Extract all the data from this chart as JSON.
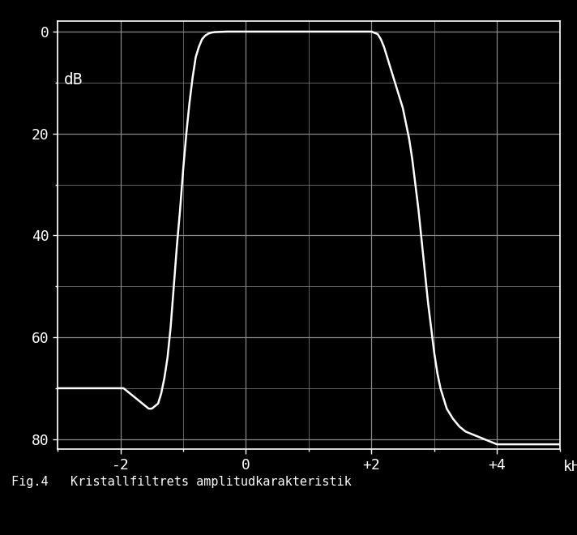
{
  "caption": "Fig.4   Kristallfiltrets amplitudkarakteristik",
  "xlabel": "kHz",
  "ylabel": "dB",
  "xlim": [
    -3.0,
    5.0
  ],
  "ylim": [
    82,
    -2
  ],
  "xticks": [
    -2,
    0,
    2,
    4
  ],
  "xticklabels": [
    "-2",
    "0",
    "+2",
    "+4"
  ],
  "yticks": [
    0,
    20,
    40,
    60,
    80
  ],
  "yticklabels": [
    "0",
    "20",
    "40",
    "60",
    "80"
  ],
  "background_color": "#000000",
  "grid_color": "#888888",
  "line_color": "#ffffff",
  "text_color": "#ffffff",
  "curve_x": [
    -3.0,
    -2.9,
    -2.7,
    -2.5,
    -2.3,
    -2.1,
    -2.0,
    -1.95,
    -1.9,
    -1.85,
    -1.8,
    -1.75,
    -1.7,
    -1.65,
    -1.6,
    -1.55,
    -1.5,
    -1.45,
    -1.4,
    -1.35,
    -1.3,
    -1.25,
    -1.2,
    -1.15,
    -1.1,
    -1.05,
    -1.0,
    -0.95,
    -0.9,
    -0.85,
    -0.8,
    -0.75,
    -0.7,
    -0.65,
    -0.6,
    -0.55,
    -0.5,
    -0.4,
    -0.3,
    -0.2,
    -0.1,
    0.0,
    0.2,
    0.5,
    0.8,
    1.0,
    1.3,
    1.6,
    1.8,
    1.9,
    2.0,
    2.1,
    2.15,
    2.2,
    2.25,
    2.3,
    2.35,
    2.4,
    2.45,
    2.5,
    2.55,
    2.6,
    2.65,
    2.7,
    2.75,
    2.8,
    2.85,
    2.9,
    2.95,
    3.0,
    3.05,
    3.1,
    3.15,
    3.2,
    3.3,
    3.4,
    3.5,
    3.6,
    3.7,
    3.8,
    3.9,
    4.0,
    4.1,
    4.2,
    4.5,
    5.0
  ],
  "curve_y": [
    70,
    70,
    70,
    70,
    70,
    70,
    70,
    70,
    70.5,
    71,
    71.5,
    72,
    72.5,
    73,
    73.5,
    74,
    74,
    73.5,
    73,
    71,
    68,
    64,
    58,
    50,
    42,
    35,
    27,
    20,
    14,
    9,
    5,
    3,
    1.5,
    0.8,
    0.4,
    0.2,
    0.1,
    0.05,
    0.0,
    0.0,
    0.0,
    0.0,
    0.0,
    0.0,
    0.0,
    0.0,
    0.0,
    0.0,
    0.0,
    0.0,
    0.0,
    0.5,
    1.5,
    3,
    5,
    7,
    9,
    11,
    13,
    15,
    18,
    21,
    25,
    30,
    35,
    41,
    47,
    53,
    58,
    63,
    67,
    70,
    72,
    74,
    76,
    77.5,
    78.5,
    79,
    79.5,
    80,
    80.5,
    81,
    81,
    81,
    81,
    81
  ]
}
